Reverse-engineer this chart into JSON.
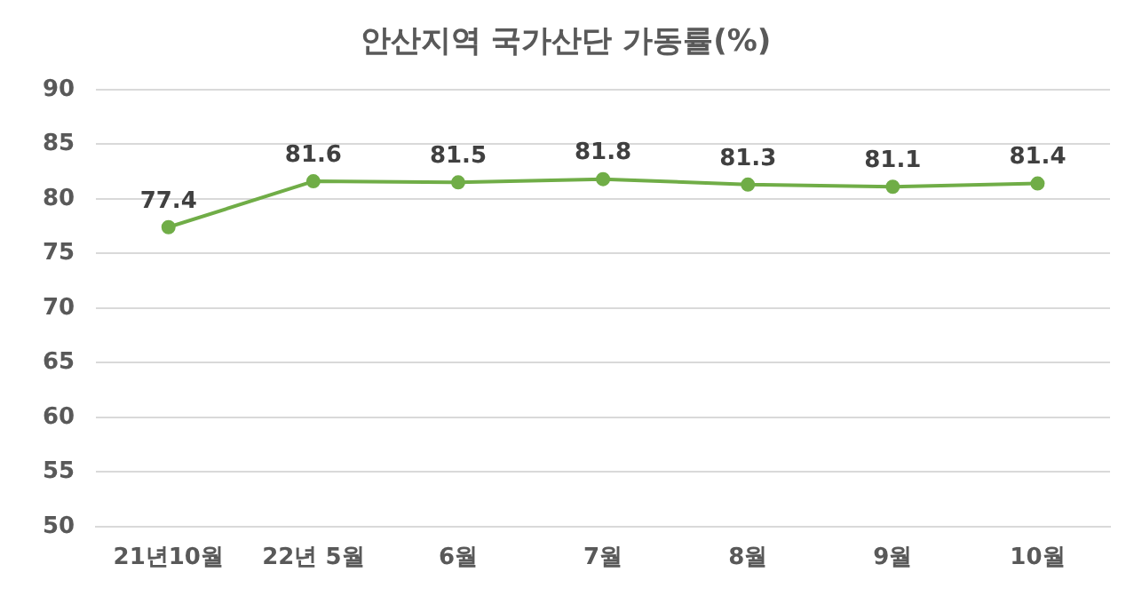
{
  "chart_data": {
    "type": "line",
    "title": "안산지역 국가산단 가동률(%)",
    "categories": [
      "21년10월",
      "22년 5월",
      "6월",
      "7월",
      "8월",
      "9월",
      "10월"
    ],
    "series": [
      {
        "color": "#70ad47",
        "values": [
          77.4,
          81.6,
          81.5,
          81.8,
          81.3,
          81.1,
          81.4
        ]
      }
    ],
    "ylim": [
      50,
      90
    ],
    "yticks": [
      50,
      55,
      60,
      65,
      70,
      75,
      80,
      85,
      90
    ],
    "grid": "y",
    "legend": false,
    "marker": "circle",
    "line_style": "solid",
    "data_labels": true
  }
}
